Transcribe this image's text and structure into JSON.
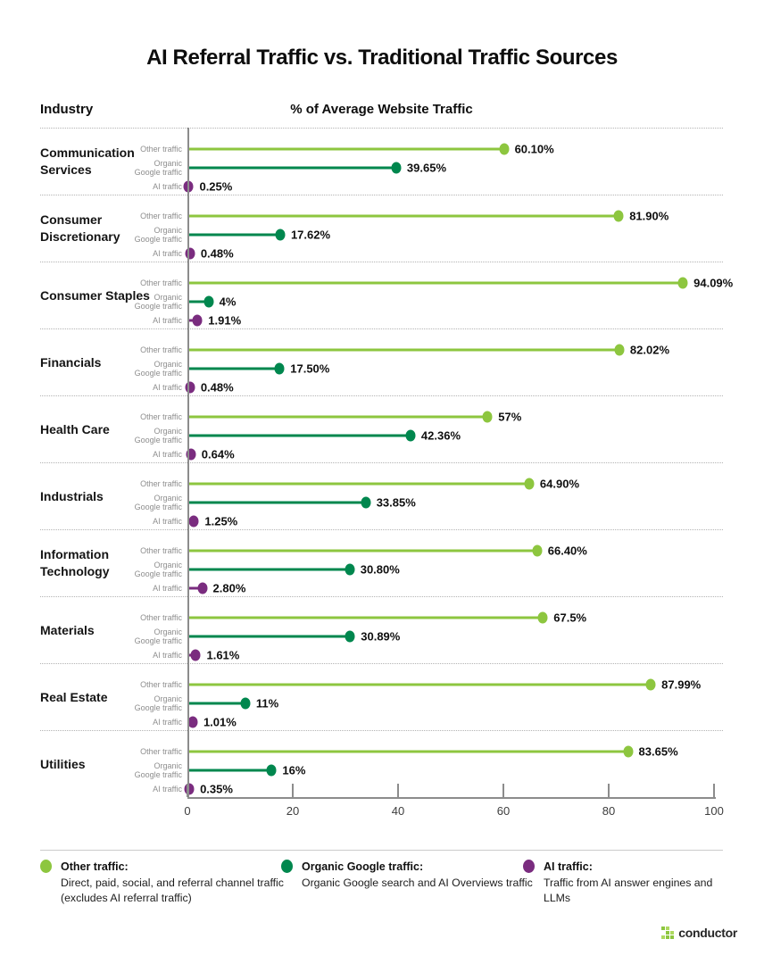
{
  "title": "AI Referral Traffic vs. Traditional Traffic Sources",
  "column_headers": {
    "industry": "Industry",
    "value": "% of Average Website Traffic"
  },
  "colors": {
    "other_traffic": "#8DC63F",
    "organic_google_traffic": "#00874E",
    "ai_traffic": "#7A2C7F",
    "axis": "#8C8C8C",
    "separator_dotted": "#B3B3B3"
  },
  "chart_data": {
    "type": "bar",
    "subtype": "horizontal-lollipop",
    "categories": [
      "Communication Services",
      "Consumer Discretionary",
      "Consumer Staples",
      "Financials",
      "Health Care",
      "Industrials",
      "Information Technology",
      "Materials",
      "Real Estate",
      "Utilities"
    ],
    "series": [
      {
        "name": "Other traffic",
        "row_label_lines": [
          "Other traffic"
        ],
        "color": "#8DC63F",
        "values": [
          60.1,
          81.9,
          94.09,
          82.02,
          57,
          64.9,
          66.4,
          67.5,
          87.99,
          83.65
        ],
        "labels": [
          "60.10%",
          "81.90%",
          "94.09%",
          "82.02%",
          "57%",
          "64.90%",
          "66.40%",
          "67.5%",
          "87.99%",
          "83.65%"
        ]
      },
      {
        "name": "Organic Google traffic",
        "row_label_lines": [
          "Organic",
          "Google traffic"
        ],
        "color": "#00874E",
        "values": [
          39.65,
          17.62,
          4,
          17.5,
          42.36,
          33.85,
          30.8,
          30.89,
          11,
          16
        ],
        "labels": [
          "39.65%",
          "17.62%",
          "4%",
          "17.50%",
          "42.36%",
          "33.85%",
          "30.80%",
          "30.89%",
          "11%",
          "16%"
        ]
      },
      {
        "name": "AI traffic",
        "row_label_lines": [
          "AI traffic"
        ],
        "color": "#7A2C7F",
        "values": [
          0.25,
          0.48,
          1.91,
          0.48,
          0.64,
          1.25,
          2.8,
          1.61,
          1.01,
          0.35
        ],
        "labels": [
          "0.25%",
          "0.48%",
          "1.91%",
          "0.48%",
          "0.64%",
          "1.25%",
          "2.80%",
          "1.61%",
          "1.01%",
          "0.35%"
        ]
      }
    ],
    "x_ticks": [
      0,
      20,
      40,
      60,
      80,
      100
    ],
    "xlim": [
      0,
      100
    ],
    "xlabel": "% of Average Website Traffic",
    "ylabel": "Industry",
    "grid": "dotted-row-separators",
    "legend_position": "bottom"
  },
  "legend": [
    {
      "title": "Other traffic:",
      "color": "#8DC63F",
      "desc": [
        "Direct, paid, social, and referral channel traffic",
        "(excludes AI referral traffic)"
      ]
    },
    {
      "title": "Organic Google traffic:",
      "color": "#00874E",
      "desc": [
        "Organic Google search and AI Overviews traffic"
      ]
    },
    {
      "title": "AI traffic:",
      "color": "#7A2C7F",
      "desc": [
        "Traffic from AI answer engines and LLMs"
      ]
    }
  ],
  "footer": {
    "logo_text": "conductor"
  }
}
